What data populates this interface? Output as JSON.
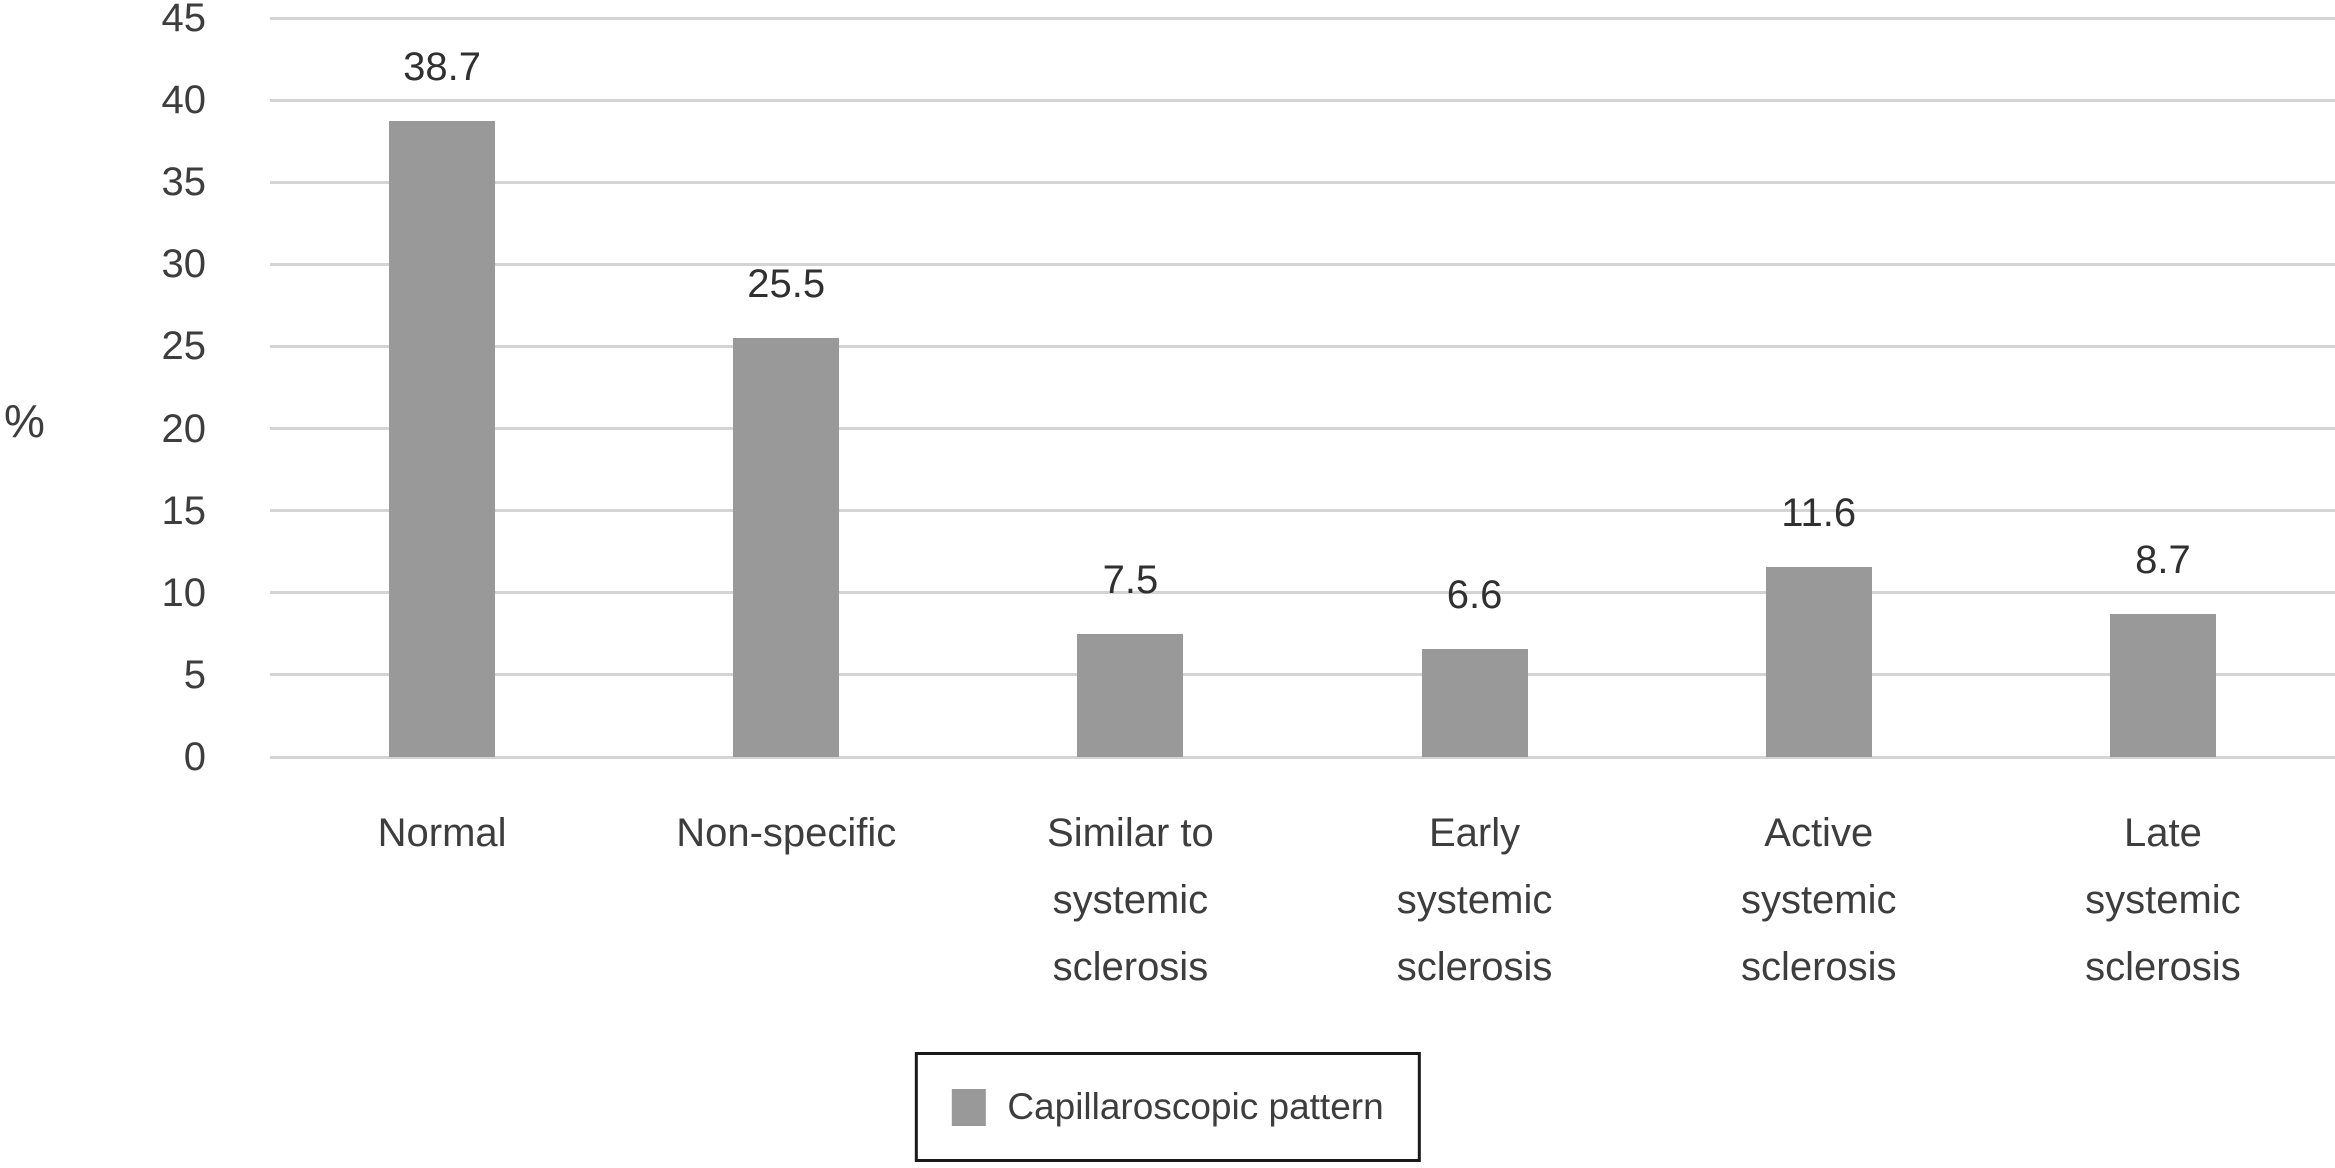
{
  "figure": {
    "ylabel": "%",
    "legend_label": "Capillaroscopic pattern"
  },
  "chart_data": {
    "type": "bar",
    "title": "",
    "xlabel": "",
    "ylabel": "%",
    "series_name": "Capillaroscopic pattern",
    "categories": [
      "Normal",
      "Non-specific",
      "Similar to systemic sclerosis",
      "Early systemic sclerosis",
      "Active systemic sclerosis",
      "Late systemic sclerosis"
    ],
    "categories_display": [
      "Normal",
      "Non-specific",
      "Similar to\nsystemic\nsclerosis",
      "Early\nsystemic\nsclerosis",
      "Active\nsystemic\nsclerosis",
      "Late\nsystemic\nsclerosis"
    ],
    "values": [
      38.7,
      25.5,
      7.5,
      6.6,
      11.6,
      8.7
    ],
    "value_labels": [
      "38.7",
      "25.5",
      "7.5",
      "6.6",
      "11.6",
      "8.7"
    ],
    "ylim": [
      0,
      45
    ],
    "yticks": [
      0,
      5,
      10,
      15,
      20,
      25,
      30,
      35,
      40,
      45
    ],
    "grid": true,
    "legend_position": "bottom",
    "bar_color": "#999999",
    "gridline_color": "#d4d4d4",
    "text_color": "#3d3d3d"
  }
}
